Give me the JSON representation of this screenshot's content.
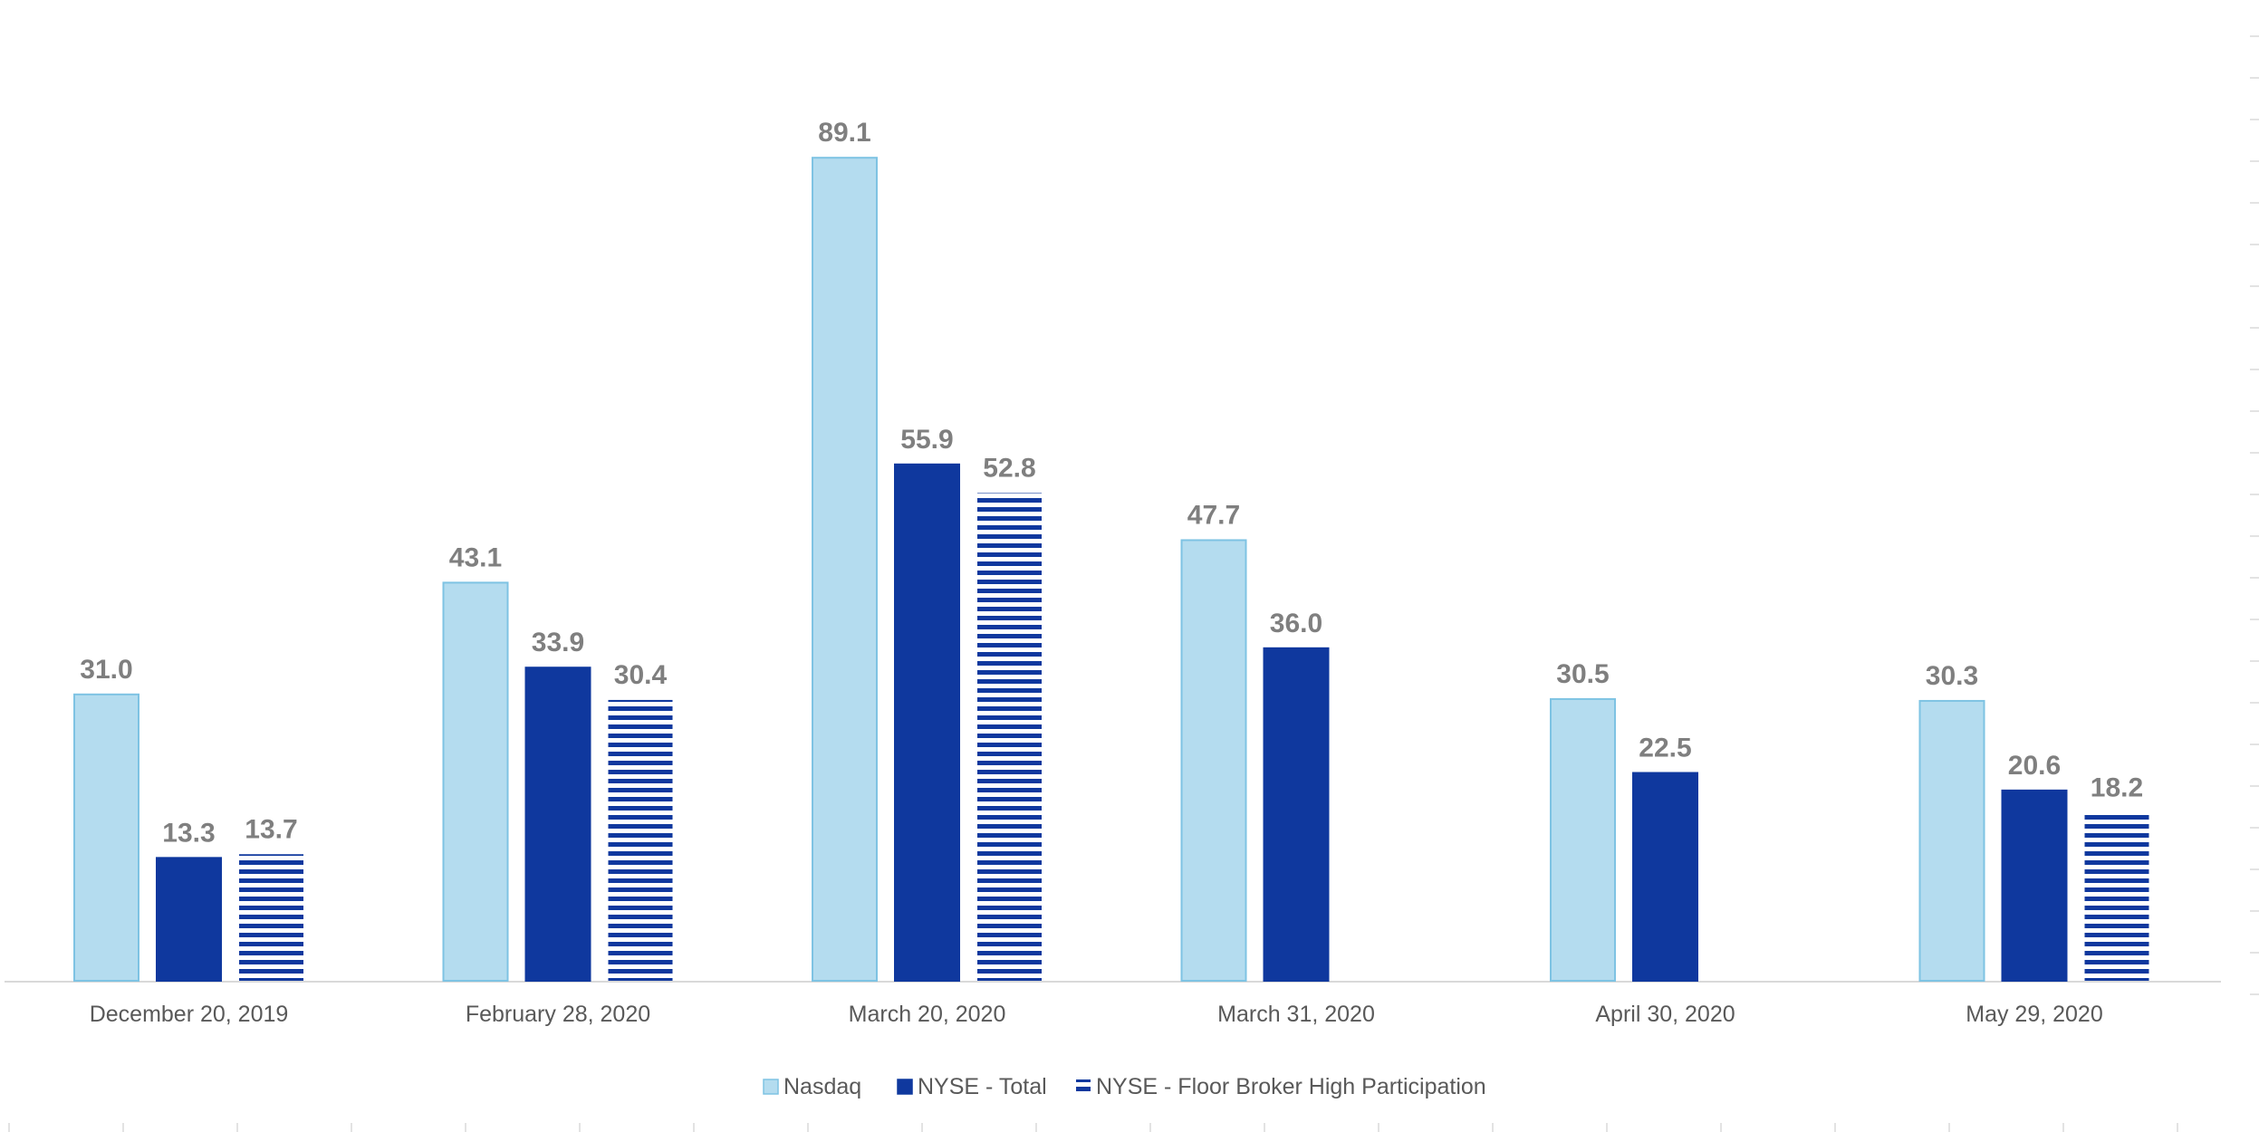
{
  "chart_data": {
    "type": "bar",
    "title": "",
    "xlabel": "",
    "ylabel": "",
    "categories": [
      "December 20, 2019",
      "February 28, 2020",
      "March 20, 2020",
      "March 31, 2020",
      "April 30, 2020",
      "May 29, 2020"
    ],
    "series": [
      {
        "name": "Nasdaq",
        "values": [
          31.0,
          43.1,
          89.1,
          47.7,
          30.5,
          30.3
        ],
        "labels": [
          "31.0",
          "43.1",
          "89.1",
          "47.7",
          "30.5",
          "30.3"
        ],
        "color": "#b4dcef",
        "border": "#7ec3e3",
        "pattern": "solid"
      },
      {
        "name": "NYSE - Total",
        "values": [
          13.3,
          33.9,
          55.9,
          36.0,
          22.5,
          20.6
        ],
        "labels": [
          "13.3",
          "33.9",
          "55.9",
          "36.0",
          "22.5",
          "20.6"
        ],
        "color": "#0f389e",
        "border": "#0f389e",
        "pattern": "solid"
      },
      {
        "name": "NYSE - Floor Broker High Participation",
        "values": [
          13.7,
          30.4,
          52.8,
          null,
          null,
          18.2
        ],
        "labels": [
          "13.7",
          "30.4",
          "52.8",
          null,
          null,
          "18.2"
        ],
        "color": "#0f389e",
        "border": "#0f389e",
        "pattern": "horizontal-stripes"
      }
    ],
    "ylim": [
      0,
      105
    ],
    "grid": false,
    "legend_position": "bottom",
    "label_color": "#7f7f7f",
    "axis_color": "#d9d9d9"
  }
}
